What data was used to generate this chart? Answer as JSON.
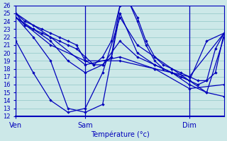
{
  "xlabel": "Température (°c)",
  "background_color": "#cce8e8",
  "grid_color": "#99cccc",
  "line_color": "#0000bb",
  "ylim": [
    12,
    26
  ],
  "yticks": [
    12,
    13,
    14,
    15,
    16,
    17,
    18,
    19,
    20,
    21,
    22,
    23,
    24,
    25,
    26
  ],
  "xlim": [
    0,
    48
  ],
  "day_ticks": [
    0,
    16,
    40
  ],
  "day_labels": [
    "Ven",
    "Sam",
    "Dim"
  ],
  "vert_lines": [
    0,
    16,
    40
  ],
  "series": [
    {
      "x": [
        0,
        2,
        4,
        6,
        8,
        10,
        12,
        14,
        16,
        18,
        20,
        22,
        24,
        26,
        28,
        30,
        32,
        34,
        36,
        38,
        40,
        42,
        44,
        46,
        48
      ],
      "y": [
        25.0,
        24.0,
        23.5,
        23.0,
        22.5,
        22.0,
        21.5,
        21.0,
        19.0,
        18.5,
        19.5,
        21.5,
        26.0,
        26.5,
        24.0,
        21.0,
        19.0,
        18.0,
        17.5,
        17.0,
        16.5,
        16.0,
        16.5,
        17.5,
        22.5
      ]
    },
    {
      "x": [
        0,
        2,
        4,
        6,
        8,
        10,
        12,
        14,
        16,
        18,
        20,
        22,
        24,
        26,
        28,
        30,
        32,
        34,
        36,
        38,
        40,
        42,
        44,
        46,
        48
      ],
      "y": [
        25.0,
        23.5,
        23.0,
        22.5,
        22.0,
        21.5,
        21.0,
        20.5,
        19.5,
        18.5,
        18.5,
        19.5,
        26.0,
        26.5,
        24.5,
        21.5,
        19.5,
        18.5,
        18.0,
        17.5,
        17.0,
        16.5,
        16.5,
        20.5,
        22.5
      ]
    },
    {
      "x": [
        0,
        4,
        8,
        12,
        16,
        20,
        24,
        28,
        32,
        36,
        40,
        44,
        48
      ],
      "y": [
        24.5,
        23.0,
        21.5,
        19.0,
        17.5,
        18.5,
        21.5,
        19.5,
        18.5,
        17.5,
        16.5,
        21.5,
        22.5
      ]
    },
    {
      "x": [
        0,
        4,
        8,
        12,
        16,
        20,
        24,
        28,
        32,
        36,
        40,
        44,
        48
      ],
      "y": [
        24.5,
        22.0,
        19.0,
        13.0,
        12.5,
        13.5,
        25.0,
        20.0,
        18.5,
        17.5,
        16.0,
        15.0,
        22.0
      ]
    },
    {
      "x": [
        0,
        4,
        8,
        12,
        16,
        20,
        24,
        28,
        32,
        36,
        40,
        44,
        48
      ],
      "y": [
        21.5,
        17.5,
        14.0,
        12.5,
        13.0,
        17.5,
        24.5,
        21.0,
        19.5,
        18.0,
        16.5,
        15.0,
        14.5
      ]
    },
    {
      "x": [
        0,
        8,
        16,
        24,
        32,
        40,
        48
      ],
      "y": [
        25.0,
        22.0,
        18.5,
        19.5,
        18.0,
        17.0,
        22.5
      ]
    },
    {
      "x": [
        0,
        8,
        16,
        24,
        32,
        40,
        48
      ],
      "y": [
        24.5,
        21.0,
        19.0,
        19.0,
        18.0,
        15.5,
        16.0
      ]
    }
  ]
}
